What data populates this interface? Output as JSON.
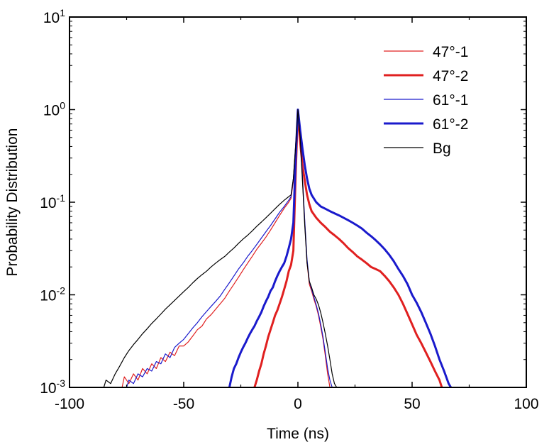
{
  "chart_data": {
    "type": "line",
    "title": "",
    "xlabel": "Time (ns)",
    "ylabel": "Probability Distribution",
    "xscale": "linear",
    "yscale": "log",
    "xlim": [
      -100,
      100
    ],
    "ylim": [
      0.001,
      10
    ],
    "xticks": [
      -100,
      -50,
      0,
      50,
      100
    ],
    "xtick_labels": [
      "-100",
      "-50",
      "0",
      "50",
      "100"
    ],
    "yticks": [
      {
        "value": 0.001,
        "base": "10",
        "exp": "-3"
      },
      {
        "value": 0.01,
        "base": "10",
        "exp": "-2"
      },
      {
        "value": 0.1,
        "base": "10",
        "exp": "-1"
      },
      {
        "value": 1,
        "base": "10",
        "exp": "0"
      },
      {
        "value": 10,
        "base": "10",
        "exp": "1"
      }
    ],
    "grid": false,
    "legend_position": "top-right",
    "series": [
      {
        "name": "47°-1",
        "color": "#e02020",
        "width": "thin",
        "points": [
          [
            -77,
            0.001
          ],
          [
            -76,
            0.0013
          ],
          [
            -74,
            0.0011
          ],
          [
            -72,
            0.0014
          ],
          [
            -70,
            0.0012
          ],
          [
            -68,
            0.0016
          ],
          [
            -66,
            0.0014
          ],
          [
            -64,
            0.0018
          ],
          [
            -62,
            0.0016
          ],
          [
            -60,
            0.0021
          ],
          [
            -58,
            0.0019
          ],
          [
            -56,
            0.0024
          ],
          [
            -54,
            0.0022
          ],
          [
            -52,
            0.0028
          ],
          [
            -50,
            0.0028
          ],
          [
            -48,
            0.0031
          ],
          [
            -46,
            0.0036
          ],
          [
            -44,
            0.0042
          ],
          [
            -42,
            0.0046
          ],
          [
            -40,
            0.0055
          ],
          [
            -38,
            0.0061
          ],
          [
            -36,
            0.007
          ],
          [
            -34,
            0.008
          ],
          [
            -32,
            0.0092
          ],
          [
            -30,
            0.011
          ],
          [
            -28,
            0.013
          ],
          [
            -26,
            0.0155
          ],
          [
            -24,
            0.0185
          ],
          [
            -22,
            0.022
          ],
          [
            -20,
            0.026
          ],
          [
            -18,
            0.031
          ],
          [
            -16,
            0.036
          ],
          [
            -14,
            0.042
          ],
          [
            -12,
            0.05
          ],
          [
            -10,
            0.06
          ],
          [
            -8,
            0.072
          ],
          [
            -6,
            0.086
          ],
          [
            -4,
            0.1
          ],
          [
            -3,
            0.11
          ],
          [
            -2,
            0.17
          ],
          [
            -1,
            0.4
          ],
          [
            0,
            1.0
          ],
          [
            1,
            0.55
          ],
          [
            2,
            0.18
          ],
          [
            3,
            0.06
          ],
          [
            4,
            0.022
          ],
          [
            5,
            0.013
          ],
          [
            6,
            0.011
          ],
          [
            7,
            0.009
          ],
          [
            8,
            0.0075
          ],
          [
            9,
            0.006
          ],
          [
            10,
            0.0045
          ],
          [
            11,
            0.0033
          ],
          [
            12,
            0.0022
          ],
          [
            13,
            0.0014
          ],
          [
            14,
            0.001
          ]
        ]
      },
      {
        "name": "47°-2",
        "color": "#e02020",
        "width": "thick",
        "points": [
          [
            -19,
            0.001
          ],
          [
            -18,
            0.0012
          ],
          [
            -17,
            0.0015
          ],
          [
            -16,
            0.0018
          ],
          [
            -15,
            0.0023
          ],
          [
            -14,
            0.0028
          ],
          [
            -13,
            0.0035
          ],
          [
            -12,
            0.0042
          ],
          [
            -11,
            0.005
          ],
          [
            -10,
            0.006
          ],
          [
            -9,
            0.0068
          ],
          [
            -8,
            0.008
          ],
          [
            -7,
            0.0095
          ],
          [
            -6,
            0.0115
          ],
          [
            -5,
            0.014
          ],
          [
            -4,
            0.018
          ],
          [
            -3,
            0.021
          ],
          [
            -2,
            0.03
          ],
          [
            -1,
            0.2
          ],
          [
            0,
            0.98
          ],
          [
            1,
            0.45
          ],
          [
            2,
            0.25
          ],
          [
            3,
            0.17
          ],
          [
            4,
            0.12
          ],
          [
            5,
            0.095
          ],
          [
            6,
            0.08
          ],
          [
            8,
            0.068
          ],
          [
            10,
            0.06
          ],
          [
            12,
            0.054
          ],
          [
            14,
            0.048
          ],
          [
            16,
            0.044
          ],
          [
            18,
            0.04
          ],
          [
            20,
            0.036
          ],
          [
            22,
            0.032
          ],
          [
            24,
            0.029
          ],
          [
            26,
            0.026
          ],
          [
            28,
            0.024
          ],
          [
            30,
            0.022
          ],
          [
            32,
            0.02
          ],
          [
            34,
            0.019
          ],
          [
            36,
            0.018
          ],
          [
            38,
            0.016
          ],
          [
            40,
            0.014
          ],
          [
            42,
            0.012
          ],
          [
            44,
            0.01
          ],
          [
            46,
            0.008
          ],
          [
            48,
            0.0062
          ],
          [
            50,
            0.0048
          ],
          [
            52,
            0.0037
          ],
          [
            54,
            0.003
          ],
          [
            56,
            0.0024
          ],
          [
            58,
            0.0019
          ],
          [
            60,
            0.0015
          ],
          [
            62,
            0.0012
          ],
          [
            63,
            0.001
          ]
        ]
      },
      {
        "name": "61°-1",
        "color": "#1a1acc",
        "width": "thin",
        "points": [
          [
            -75,
            0.001
          ],
          [
            -74,
            0.0012
          ],
          [
            -72,
            0.0011
          ],
          [
            -70,
            0.0014
          ],
          [
            -68,
            0.0013
          ],
          [
            -66,
            0.0016
          ],
          [
            -64,
            0.0015
          ],
          [
            -62,
            0.0019
          ],
          [
            -60,
            0.0018
          ],
          [
            -58,
            0.0023
          ],
          [
            -56,
            0.0021
          ],
          [
            -54,
            0.0027
          ],
          [
            -52,
            0.003
          ],
          [
            -50,
            0.0033
          ],
          [
            -48,
            0.0038
          ],
          [
            -46,
            0.0044
          ],
          [
            -44,
            0.005
          ],
          [
            -42,
            0.0058
          ],
          [
            -40,
            0.0066
          ],
          [
            -38,
            0.0075
          ],
          [
            -36,
            0.0085
          ],
          [
            -34,
            0.0097
          ],
          [
            -32,
            0.0115
          ],
          [
            -30,
            0.0135
          ],
          [
            -28,
            0.016
          ],
          [
            -26,
            0.019
          ],
          [
            -24,
            0.022
          ],
          [
            -22,
            0.026
          ],
          [
            -20,
            0.03
          ],
          [
            -18,
            0.035
          ],
          [
            -16,
            0.041
          ],
          [
            -14,
            0.048
          ],
          [
            -12,
            0.056
          ],
          [
            -10,
            0.066
          ],
          [
            -8,
            0.078
          ],
          [
            -6,
            0.09
          ],
          [
            -4,
            0.105
          ],
          [
            -3,
            0.115
          ],
          [
            -2,
            0.18
          ],
          [
            -1,
            0.42
          ],
          [
            0,
            1.0
          ],
          [
            1,
            0.55
          ],
          [
            2,
            0.19
          ],
          [
            3,
            0.062
          ],
          [
            4,
            0.024
          ],
          [
            5,
            0.014
          ],
          [
            6,
            0.0115
          ],
          [
            7,
            0.0095
          ],
          [
            8,
            0.0078
          ],
          [
            9,
            0.0063
          ],
          [
            10,
            0.0048
          ],
          [
            11,
            0.0035
          ],
          [
            12,
            0.0024
          ],
          [
            13,
            0.0016
          ],
          [
            14,
            0.0012
          ],
          [
            15,
            0.001
          ]
        ]
      },
      {
        "name": "61°-2",
        "color": "#1a1acc",
        "width": "thick",
        "points": [
          [
            -30,
            0.001
          ],
          [
            -29,
            0.0013
          ],
          [
            -28,
            0.0016
          ],
          [
            -27,
            0.0018
          ],
          [
            -26,
            0.0021
          ],
          [
            -25,
            0.0024
          ],
          [
            -24,
            0.0027
          ],
          [
            -23,
            0.003
          ],
          [
            -22,
            0.0034
          ],
          [
            -21,
            0.0038
          ],
          [
            -20,
            0.0042
          ],
          [
            -19,
            0.0046
          ],
          [
            -18,
            0.0052
          ],
          [
            -17,
            0.0058
          ],
          [
            -16,
            0.0065
          ],
          [
            -15,
            0.0075
          ],
          [
            -14,
            0.0085
          ],
          [
            -13,
            0.0095
          ],
          [
            -12,
            0.011
          ],
          [
            -11,
            0.012
          ],
          [
            -10,
            0.014
          ],
          [
            -9,
            0.016
          ],
          [
            -8,
            0.018
          ],
          [
            -7,
            0.02
          ],
          [
            -6,
            0.022
          ],
          [
            -5,
            0.026
          ],
          [
            -4,
            0.032
          ],
          [
            -3,
            0.04
          ],
          [
            -2,
            0.06
          ],
          [
            -1,
            0.3
          ],
          [
            0,
            1.0
          ],
          [
            1,
            0.6
          ],
          [
            2,
            0.38
          ],
          [
            3,
            0.25
          ],
          [
            4,
            0.18
          ],
          [
            5,
            0.14
          ],
          [
            6,
            0.12
          ],
          [
            8,
            0.1
          ],
          [
            10,
            0.09
          ],
          [
            12,
            0.085
          ],
          [
            14,
            0.08
          ],
          [
            16,
            0.076
          ],
          [
            18,
            0.072
          ],
          [
            20,
            0.068
          ],
          [
            22,
            0.064
          ],
          [
            24,
            0.06
          ],
          [
            26,
            0.056
          ],
          [
            28,
            0.052
          ],
          [
            30,
            0.047
          ],
          [
            32,
            0.043
          ],
          [
            34,
            0.039
          ],
          [
            36,
            0.035
          ],
          [
            38,
            0.031
          ],
          [
            40,
            0.027
          ],
          [
            42,
            0.023
          ],
          [
            44,
            0.019
          ],
          [
            46,
            0.016
          ],
          [
            48,
            0.013
          ],
          [
            50,
            0.01
          ],
          [
            52,
            0.0082
          ],
          [
            54,
            0.0065
          ],
          [
            56,
            0.005
          ],
          [
            58,
            0.0038
          ],
          [
            60,
            0.0028
          ],
          [
            62,
            0.002
          ],
          [
            64,
            0.0015
          ],
          [
            66,
            0.0011
          ],
          [
            67,
            0.001
          ]
        ]
      },
      {
        "name": "Bg",
        "color": "#000000",
        "width": "thin",
        "points": [
          [
            -85,
            0.001
          ],
          [
            -84,
            0.0012
          ],
          [
            -82,
            0.0011
          ],
          [
            -80,
            0.0014
          ],
          [
            -78,
            0.0017
          ],
          [
            -76,
            0.0021
          ],
          [
            -74,
            0.0025
          ],
          [
            -72,
            0.0029
          ],
          [
            -70,
            0.0033
          ],
          [
            -68,
            0.0038
          ],
          [
            -66,
            0.0043
          ],
          [
            -64,
            0.0049
          ],
          [
            -62,
            0.0055
          ],
          [
            -60,
            0.0062
          ],
          [
            -58,
            0.007
          ],
          [
            -56,
            0.0078
          ],
          [
            -54,
            0.0087
          ],
          [
            -52,
            0.0097
          ],
          [
            -50,
            0.0108
          ],
          [
            -48,
            0.012
          ],
          [
            -46,
            0.0135
          ],
          [
            -44,
            0.015
          ],
          [
            -42,
            0.0165
          ],
          [
            -40,
            0.018
          ],
          [
            -38,
            0.02
          ],
          [
            -36,
            0.022
          ],
          [
            -34,
            0.024
          ],
          [
            -32,
            0.026
          ],
          [
            -30,
            0.029
          ],
          [
            -28,
            0.032
          ],
          [
            -26,
            0.036
          ],
          [
            -24,
            0.04
          ],
          [
            -22,
            0.044
          ],
          [
            -20,
            0.049
          ],
          [
            -18,
            0.055
          ],
          [
            -16,
            0.061
          ],
          [
            -14,
            0.068
          ],
          [
            -12,
            0.076
          ],
          [
            -10,
            0.085
          ],
          [
            -8,
            0.095
          ],
          [
            -6,
            0.105
          ],
          [
            -4,
            0.115
          ],
          [
            -3,
            0.12
          ],
          [
            -2,
            0.18
          ],
          [
            -1,
            0.4
          ],
          [
            0,
            1.0
          ],
          [
            1,
            0.5
          ],
          [
            2,
            0.17
          ],
          [
            3,
            0.055
          ],
          [
            4,
            0.022
          ],
          [
            5,
            0.014
          ],
          [
            6,
            0.012
          ],
          [
            7,
            0.01
          ],
          [
            8,
            0.009
          ],
          [
            9,
            0.0078
          ],
          [
            10,
            0.0064
          ],
          [
            11,
            0.005
          ],
          [
            12,
            0.0038
          ],
          [
            13,
            0.0028
          ],
          [
            14,
            0.002
          ],
          [
            15,
            0.0014
          ],
          [
            16,
            0.0011
          ],
          [
            17,
            0.001
          ]
        ]
      }
    ]
  }
}
